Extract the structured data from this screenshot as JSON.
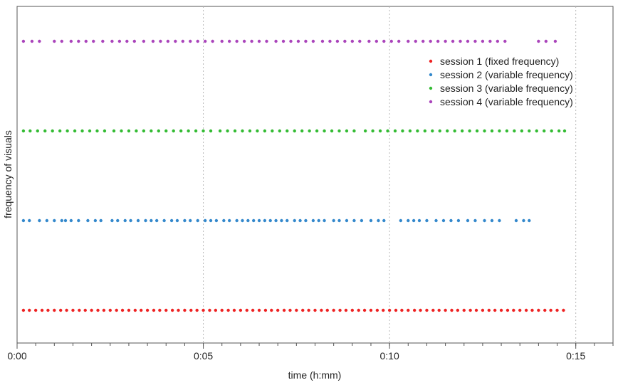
{
  "chart_data": {
    "type": "scatter",
    "title": "",
    "xlabel": "time (h:mm)",
    "ylabel": "frequency of visuals",
    "x_unit": "minutes",
    "xlim": [
      0,
      16
    ],
    "x_ticks": [
      {
        "value": 0,
        "label": "0:00"
      },
      {
        "value": 5,
        "label": "0:05"
      },
      {
        "value": 10,
        "label": "0:10"
      },
      {
        "value": 15,
        "label": "0:15"
      }
    ],
    "x_minor_ticks": [
      0,
      0.5,
      1,
      1.5,
      2,
      2.5,
      3,
      3.5,
      4,
      4.5,
      5,
      5.5,
      6,
      6.5,
      7,
      7.5,
      8,
      8.5,
      9,
      9.5,
      10,
      10.5,
      11,
      11.5,
      12,
      12.5,
      13,
      13.5,
      14,
      14.5,
      15,
      15.5,
      16
    ],
    "grid": {
      "vertical": [
        5,
        10,
        15
      ],
      "style": "dotted"
    },
    "legend_position": "top-right",
    "series": [
      {
        "name": "session 1 (fixed frequency)",
        "color": "#ee2222",
        "y": 1,
        "x": [
          0.17,
          0.33,
          0.5,
          0.67,
          0.83,
          1.0,
          1.17,
          1.33,
          1.5,
          1.67,
          1.83,
          2.0,
          2.17,
          2.33,
          2.5,
          2.67,
          2.83,
          3.0,
          3.17,
          3.33,
          3.5,
          3.67,
          3.83,
          4.0,
          4.17,
          4.33,
          4.5,
          4.67,
          4.83,
          5.0,
          5.17,
          5.33,
          5.5,
          5.67,
          5.83,
          6.0,
          6.17,
          6.33,
          6.5,
          6.67,
          6.83,
          7.0,
          7.17,
          7.33,
          7.5,
          7.67,
          7.83,
          8.0,
          8.17,
          8.33,
          8.5,
          8.67,
          8.83,
          9.0,
          9.17,
          9.33,
          9.5,
          9.67,
          9.83,
          10.0,
          10.17,
          10.33,
          10.5,
          10.67,
          10.83,
          11.0,
          11.17,
          11.33,
          11.5,
          11.67,
          11.83,
          12.0,
          12.17,
          12.33,
          12.5,
          12.67,
          12.83,
          13.0,
          13.17,
          13.33,
          13.5,
          13.67,
          13.83,
          14.0,
          14.17,
          14.33,
          14.5,
          14.67
        ]
      },
      {
        "name": "session 2 (variable frequency)",
        "color": "#3388cc",
        "y": 2,
        "x": [
          0.17,
          0.33,
          0.6,
          0.8,
          1.0,
          1.2,
          1.3,
          1.45,
          1.65,
          1.9,
          2.1,
          2.25,
          2.55,
          2.7,
          2.9,
          3.05,
          3.25,
          3.45,
          3.6,
          3.75,
          3.95,
          4.15,
          4.3,
          4.5,
          4.65,
          4.85,
          5.05,
          5.2,
          5.35,
          5.55,
          5.7,
          5.9,
          6.05,
          6.2,
          6.35,
          6.5,
          6.65,
          6.8,
          6.95,
          7.1,
          7.25,
          7.45,
          7.6,
          7.75,
          7.95,
          8.1,
          8.25,
          8.5,
          8.65,
          8.85,
          9.05,
          9.25,
          9.5,
          9.7,
          9.85,
          10.3,
          10.5,
          10.65,
          10.8,
          11.0,
          11.25,
          11.45,
          11.65,
          11.85,
          12.1,
          12.3,
          12.55,
          12.75,
          12.95,
          13.4,
          13.6,
          13.75
        ]
      },
      {
        "name": "session 3 (variable frequency)",
        "color": "#33bb33",
        "y": 3,
        "x": [
          0.17,
          0.35,
          0.55,
          0.75,
          0.95,
          1.15,
          1.35,
          1.55,
          1.75,
          1.95,
          2.15,
          2.35,
          2.6,
          2.8,
          3.0,
          3.2,
          3.4,
          3.6,
          3.8,
          4.0,
          4.2,
          4.4,
          4.6,
          4.8,
          5.0,
          5.2,
          5.45,
          5.65,
          5.85,
          6.05,
          6.25,
          6.45,
          6.65,
          6.85,
          7.05,
          7.25,
          7.45,
          7.65,
          7.85,
          8.05,
          8.25,
          8.45,
          8.65,
          8.85,
          9.05,
          9.35,
          9.55,
          9.75,
          9.95,
          10.15,
          10.35,
          10.55,
          10.75,
          10.95,
          11.15,
          11.35,
          11.55,
          11.75,
          11.95,
          12.15,
          12.35,
          12.55,
          12.75,
          12.95,
          13.15,
          13.35,
          13.55,
          13.75,
          13.95,
          14.15,
          14.35,
          14.55,
          14.7
        ]
      },
      {
        "name": "session 4 (variable frequency)",
        "color": "#aa44bb",
        "y": 4,
        "x": [
          0.17,
          0.4,
          0.6,
          1.0,
          1.2,
          1.45,
          1.65,
          1.85,
          2.05,
          2.3,
          2.55,
          2.75,
          2.95,
          3.15,
          3.4,
          3.65,
          3.85,
          4.05,
          4.25,
          4.45,
          4.65,
          4.85,
          5.05,
          5.25,
          5.5,
          5.7,
          5.9,
          6.1,
          6.3,
          6.5,
          6.7,
          6.95,
          7.15,
          7.35,
          7.55,
          7.75,
          7.95,
          8.2,
          8.4,
          8.6,
          8.8,
          9.0,
          9.2,
          9.45,
          9.65,
          9.85,
          10.05,
          10.25,
          10.5,
          10.7,
          10.9,
          11.1,
          11.3,
          11.5,
          11.7,
          11.9,
          12.1,
          12.3,
          12.5,
          12.7,
          12.9,
          13.1,
          14.0,
          14.2,
          14.45
        ]
      }
    ]
  }
}
